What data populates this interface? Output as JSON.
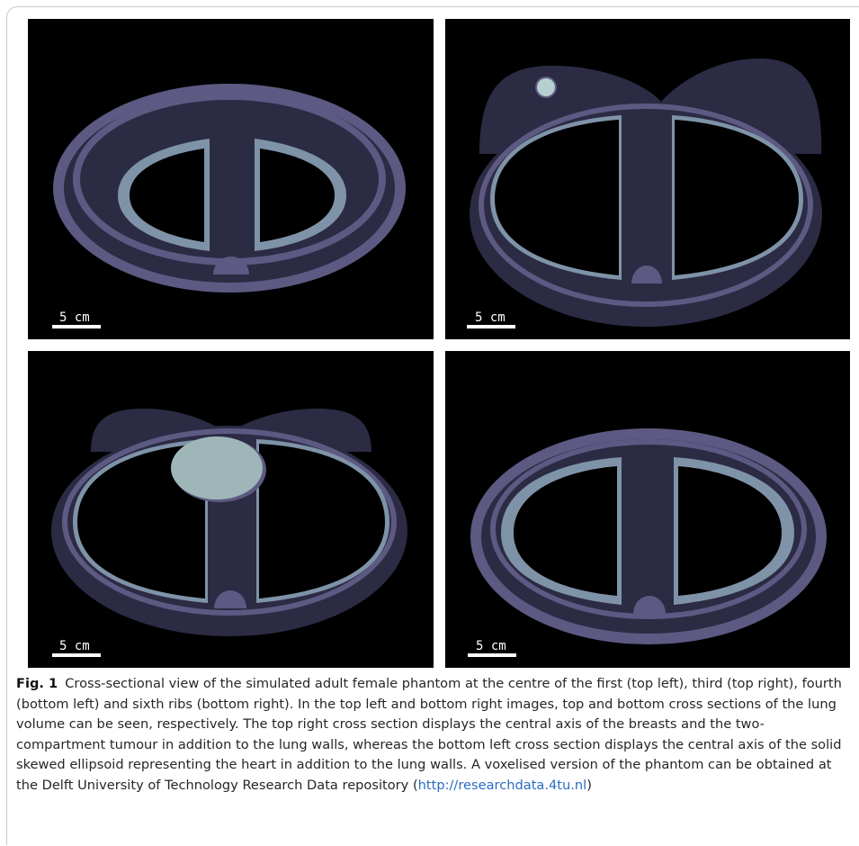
{
  "figure": {
    "panels": [
      {
        "id": "top-left",
        "scale_bar_label": "5 cm"
      },
      {
        "id": "top-right",
        "scale_bar_label": "5 cm"
      },
      {
        "id": "bottom-left",
        "scale_bar_label": "5 cm"
      },
      {
        "id": "bottom-right",
        "scale_bar_label": "5 cm"
      }
    ],
    "caption": {
      "label": "Fig. 1",
      "text_before_link": "Cross-sectional view of the simulated adult female phantom at the centre of the first (top left), third (top right), fourth (bottom left) and sixth ribs (bottom right). In the top left and bottom right images, top and bottom cross sections of the lung volume can be seen, respectively. The top right cross section displays the central axis of the breasts and the two-compartment tumour in addition to the lung walls, whereas the bottom left cross section displays the central axis of the solid skewed ellipsoid representing the heart in addition to the lung walls. A voxelised version of the phantom can be obtained at the Delft University of Technology Research Data repository (",
      "link_text": "http://researchdata.4tu.nl",
      "text_after_link": ")"
    },
    "colors": {
      "background": "#000000",
      "body": "#2c2b44",
      "body_ring": "#5c5a82",
      "lung_wall": "#7f93a8",
      "tumour": "#b6cfcf",
      "heart": "#9fb6b8"
    }
  }
}
